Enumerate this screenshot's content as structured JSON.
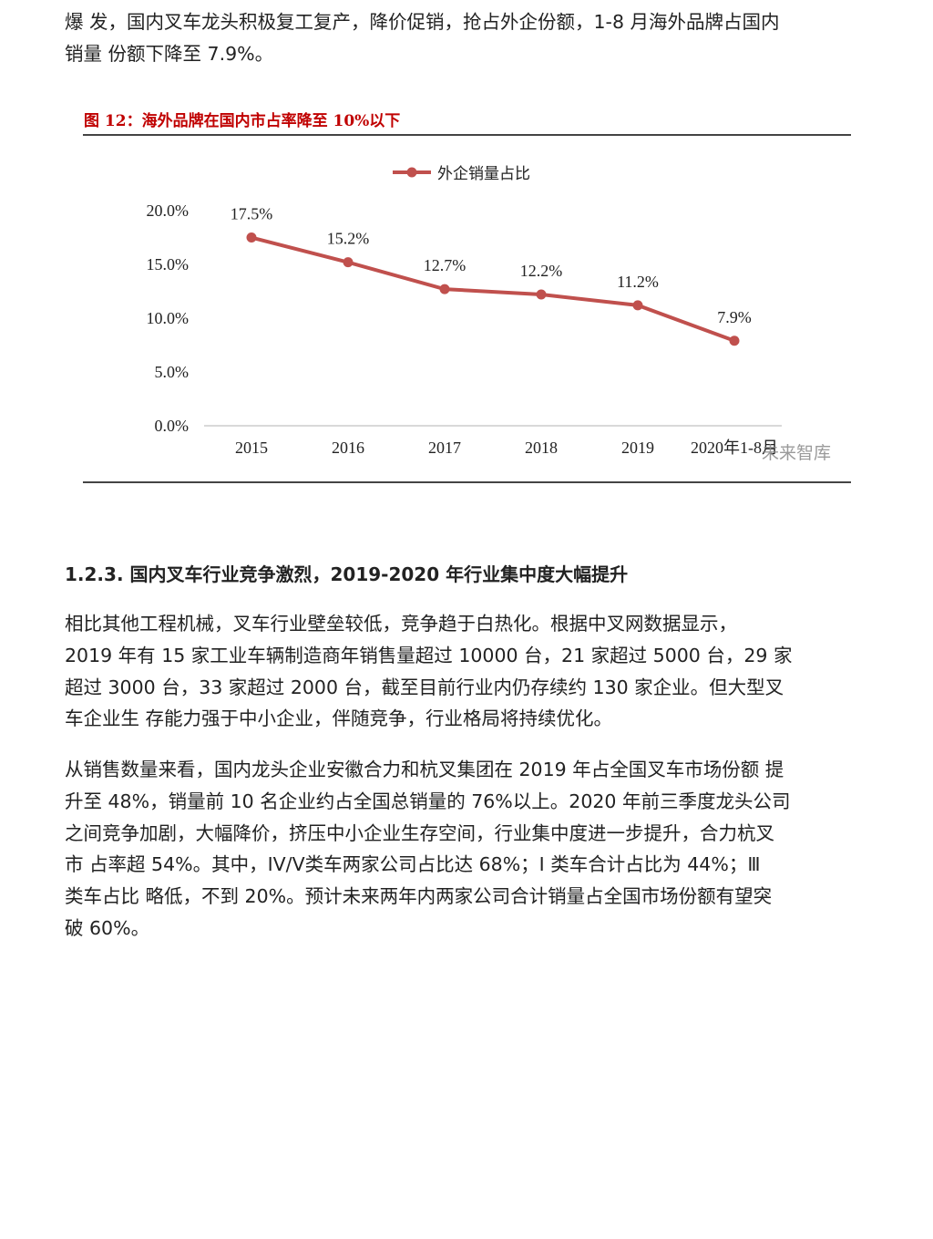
{
  "intro_lines": [
    "爆 发，国内叉车龙头积极复工复产，降价促销，抢占外企份额，1-8 月海外品牌占国内",
    "销量 份额下降至 7.9%。"
  ],
  "figure": {
    "title": "图 12：海外品牌在国内市占率降至 10%以下",
    "watermark": "未来智库"
  },
  "chart_data": {
    "type": "line",
    "categories": [
      "2015",
      "2016",
      "2017",
      "2018",
      "2019",
      "2020年1-8月"
    ],
    "series": [
      {
        "name": "外企销量占比",
        "values": [
          17.5,
          15.2,
          12.7,
          12.2,
          11.2,
          7.9
        ],
        "labels": [
          "17.5%",
          "15.2%",
          "12.7%",
          "12.2%",
          "11.2%",
          "7.9%"
        ],
        "color": "#c0504d"
      }
    ],
    "yticks": [
      "0.0%",
      "5.0%",
      "10.0%",
      "15.0%",
      "20.0%"
    ],
    "ylim": [
      0,
      20
    ],
    "legend": "top",
    "grid": false
  },
  "section": {
    "heading": "1.2.3. 国内叉车行业竞争激烈，2019-2020 年行业集中度大幅提升",
    "para1": [
      "相比其他工程机械，叉车行业壁垒较低，竞争趋于白热化。根据中叉网数据显示，",
      "2019 年有 15 家工业车辆制造商年销售量超过 10000 台，21 家超过 5000 台，29 家",
      "超过 3000 台，33 家超过 2000 台，截至目前行业内仍存续约 130 家企业。但大型叉",
      "车企业生 存能力强于中小企业，伴随竞争，行业格局将持续优化。"
    ],
    "para2": [
      "从销售数量来看，国内龙头企业安徽合力和杭叉集团在 2019 年占全国叉车市场份额 提",
      "升至 48%，销量前 10 名企业约占全国总销量的 76%以上。2020 年前三季度龙头公司",
      "之间竞争加剧，大幅降价，挤压中小企业生存空间，行业集中度进一步提升，合力杭叉",
      "市 占率超 54%。其中，IV/V类车两家公司占比达 68%；I 类车合计占比为 44%；Ⅲ",
      "类车占比 略低，不到 20%。预计未来两年内两家公司合计销量占全国市场份额有望突",
      "破 60%。"
    ]
  }
}
